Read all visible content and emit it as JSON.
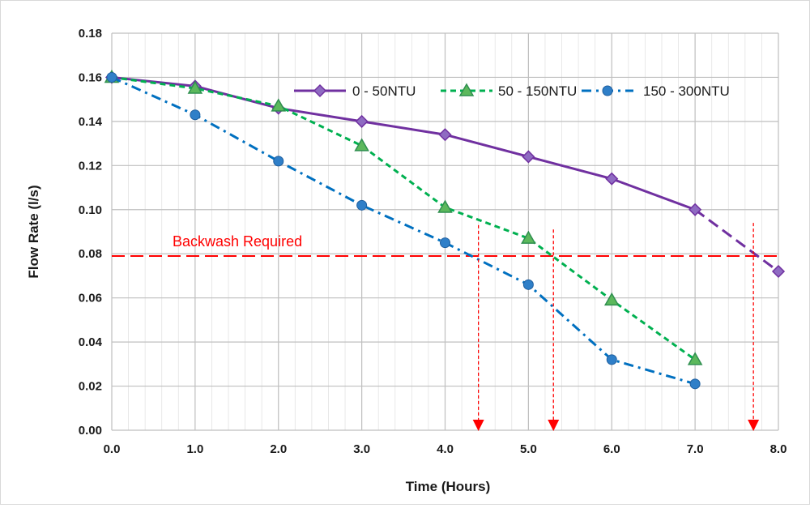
{
  "chart_data": {
    "type": "line",
    "xlabel": "Time (Hours)",
    "ylabel": "Flow Rate (l/s)",
    "xlim": [
      0,
      8
    ],
    "ylim": [
      0,
      0.18
    ],
    "x_ticks": [
      "0.0",
      "1.0",
      "2.0",
      "3.0",
      "4.0",
      "5.0",
      "6.0",
      "7.0",
      "8.0"
    ],
    "y_ticks": [
      "0.00",
      "0.02",
      "0.04",
      "0.06",
      "0.08",
      "0.10",
      "0.12",
      "0.14",
      "0.16",
      "0.18"
    ],
    "grid": true,
    "legend_position": "top-right",
    "series": [
      {
        "name": "0 - 50NTU",
        "color": "#7030a0",
        "line_style": "solid",
        "marker": "diamond",
        "x": [
          0,
          1,
          2,
          3,
          4,
          5,
          6,
          7
        ],
        "values": [
          0.16,
          0.156,
          0.146,
          0.14,
          0.134,
          0.124,
          0.114,
          0.1
        ],
        "extrapolation": {
          "x": [
            7,
            8
          ],
          "values": [
            0.1,
            0.072
          ],
          "line_style": "dashed"
        }
      },
      {
        "name": "50 - 150NTU",
        "color": "#00b050",
        "line_style": "dashed",
        "marker": "triangle",
        "x": [
          0,
          1,
          2,
          3,
          4,
          5,
          6,
          7
        ],
        "values": [
          0.16,
          0.155,
          0.147,
          0.129,
          0.101,
          0.087,
          0.059,
          0.032
        ]
      },
      {
        "name": "150 - 300NTU",
        "color": "#0070c0",
        "line_style": "dash-dot",
        "marker": "circle",
        "x": [
          0,
          1,
          2,
          3,
          4,
          5,
          6,
          7
        ],
        "values": [
          0.16,
          0.143,
          0.122,
          0.102,
          0.085,
          0.066,
          0.032,
          0.021
        ]
      }
    ],
    "threshold": {
      "label": "Backwash Required",
      "value": 0.079,
      "color": "#ff0000"
    },
    "arrows": [
      {
        "x": 4.4,
        "from": 0.093,
        "color": "#ff0000"
      },
      {
        "x": 5.3,
        "from": 0.091,
        "color": "#ff0000"
      },
      {
        "x": 7.7,
        "from": 0.094,
        "color": "#ff0000"
      }
    ]
  }
}
